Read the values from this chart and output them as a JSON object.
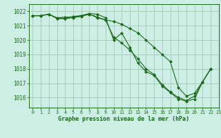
{
  "title": "Graphe pression niveau de la mer (hPa)",
  "background_color": "#cceee4",
  "grid_color": "#aaccbb",
  "line_color": "#1a6b1a",
  "xlim": [
    -0.5,
    23
  ],
  "ylim": [
    1015.3,
    1022.5
  ],
  "yticks": [
    1016,
    1017,
    1018,
    1019,
    1020,
    1021,
    1022
  ],
  "xticks": [
    0,
    1,
    2,
    3,
    4,
    5,
    6,
    7,
    8,
    9,
    10,
    11,
    12,
    13,
    14,
    15,
    16,
    17,
    18,
    19,
    20,
    21,
    22,
    23
  ],
  "series": [
    [
      1021.7,
      1021.7,
      1021.8,
      1021.5,
      1021.5,
      1021.65,
      1021.7,
      1021.85,
      1021.8,
      1021.55,
      1020.0,
      1020.5,
      1019.5,
      1018.4,
      1017.8,
      1017.55,
      1016.8,
      1016.35,
      1015.9,
      1015.75,
      1015.9,
      1017.1,
      1018.0
    ],
    [
      1021.7,
      1021.7,
      1021.8,
      1021.5,
      1021.5,
      1021.55,
      1021.65,
      1021.8,
      1021.6,
      1021.4,
      1021.3,
      1021.1,
      1020.8,
      1020.5,
      1020.0,
      1019.5,
      1019.0,
      1018.5,
      1016.7,
      1016.1,
      1016.3,
      1017.1,
      1018.0
    ],
    [
      1021.7,
      1021.7,
      1021.8,
      1021.55,
      1021.6,
      1021.6,
      1021.7,
      1021.8,
      1021.55,
      1021.4,
      1020.2,
      1019.8,
      1019.3,
      1018.7,
      1018.0,
      1017.6,
      1016.9,
      1016.4,
      1016.0,
      1015.8,
      1016.1,
      1017.1,
      1018.0
    ]
  ]
}
